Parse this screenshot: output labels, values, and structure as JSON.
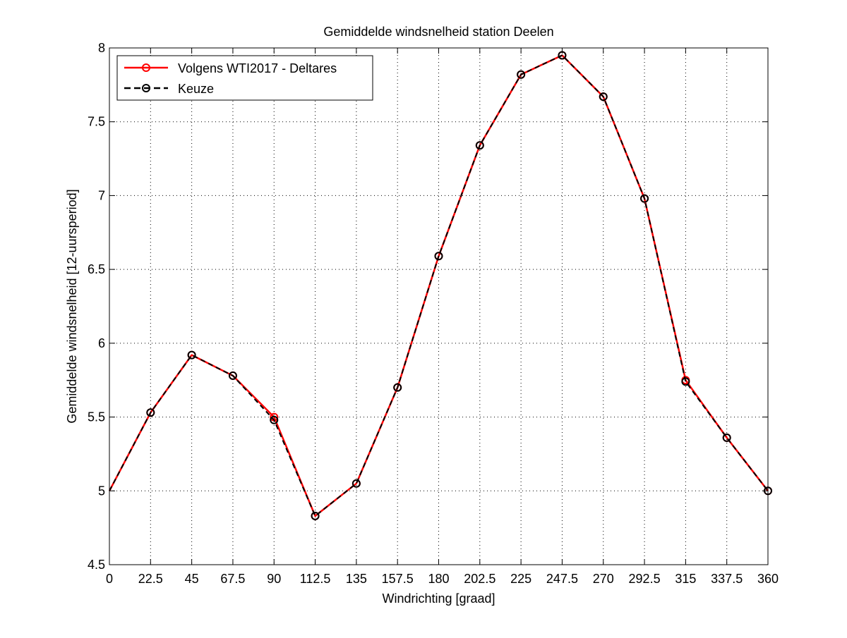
{
  "chart_data": {
    "type": "line",
    "title": "Gemiddelde windsnelheid station Deelen",
    "xlabel": "Windrichting [graad]",
    "ylabel": "Gemiddelde windsnelheid [12-uursperiod]",
    "xlim": [
      0,
      360
    ],
    "ylim": [
      4.5,
      8
    ],
    "xticks": [
      "0",
      "22.5",
      "45",
      "67.5",
      "90",
      "112.5",
      "135",
      "157.5",
      "180",
      "202.5",
      "225",
      "247.5",
      "270",
      "292.5",
      "315",
      "337.5",
      "360"
    ],
    "yticks": [
      "4.5",
      "5",
      "5.5",
      "6",
      "6.5",
      "7",
      "7.5",
      "8"
    ],
    "grid": true,
    "legend_position": "top-left",
    "x": [
      0,
      22.5,
      45,
      67.5,
      90,
      112.5,
      135,
      157.5,
      180,
      202.5,
      225,
      247.5,
      270,
      292.5,
      315,
      337.5,
      360
    ],
    "series": [
      {
        "name": "Volgens WTI2017 - Deltares",
        "color": "#ff0000",
        "line_style": "solid",
        "marker": "circle",
        "marker_from_index": 1,
        "values": [
          5.0,
          5.53,
          5.92,
          5.78,
          5.5,
          4.83,
          5.05,
          5.7,
          6.59,
          7.34,
          7.82,
          7.95,
          7.67,
          6.98,
          5.75,
          5.36,
          5.0
        ]
      },
      {
        "name": "Keuze",
        "color": "#000000",
        "line_style": "dashed",
        "marker": "circle",
        "marker_from_index": 1,
        "values": [
          5.0,
          5.53,
          5.92,
          5.78,
          5.48,
          4.83,
          5.05,
          5.7,
          6.59,
          7.34,
          7.82,
          7.95,
          7.67,
          6.98,
          5.74,
          5.36,
          5.0
        ]
      }
    ]
  }
}
